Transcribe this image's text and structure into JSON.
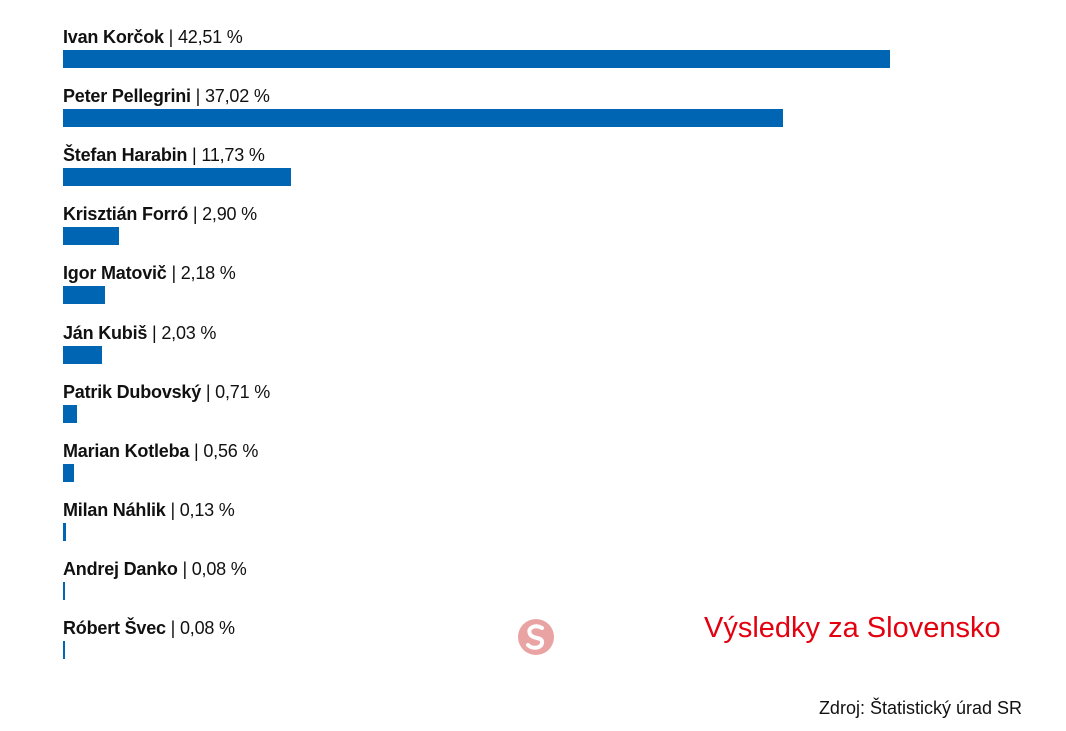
{
  "chart_data": {
    "type": "bar",
    "orientation": "horizontal",
    "title": "Výsledky za Slovensko",
    "source": "Zdroj: Štatistický úrad SR",
    "unit": "%",
    "separator": "|",
    "bar_color": "#0066b3",
    "title_color": "#e3000f",
    "logo_color": "#eaa3a3",
    "categories": [
      "Ivan Korčok",
      "Peter Pellegrini",
      "Štefan Harabin",
      "Krisztián Forró",
      "Igor Matovič",
      "Ján Kubiš",
      "Patrik Dubovský",
      "Marian Kotleba",
      "Milan Náhlik",
      "Andrej Danko",
      "Róbert Švec"
    ],
    "values": [
      42.51,
      37.02,
      11.73,
      2.9,
      2.18,
      2.03,
      0.71,
      0.56,
      0.13,
      0.08,
      0.08
    ],
    "value_labels": [
      "42,51 %",
      "37,02 %",
      "11,73 %",
      "2,90 %",
      "2,18 %",
      "2,03 %",
      "0,71 %",
      "0,56 %",
      "0,13 %",
      "0,08 %",
      "0,08 %"
    ],
    "xlim": [
      0,
      42.51
    ],
    "grid": false,
    "legend": "none"
  }
}
